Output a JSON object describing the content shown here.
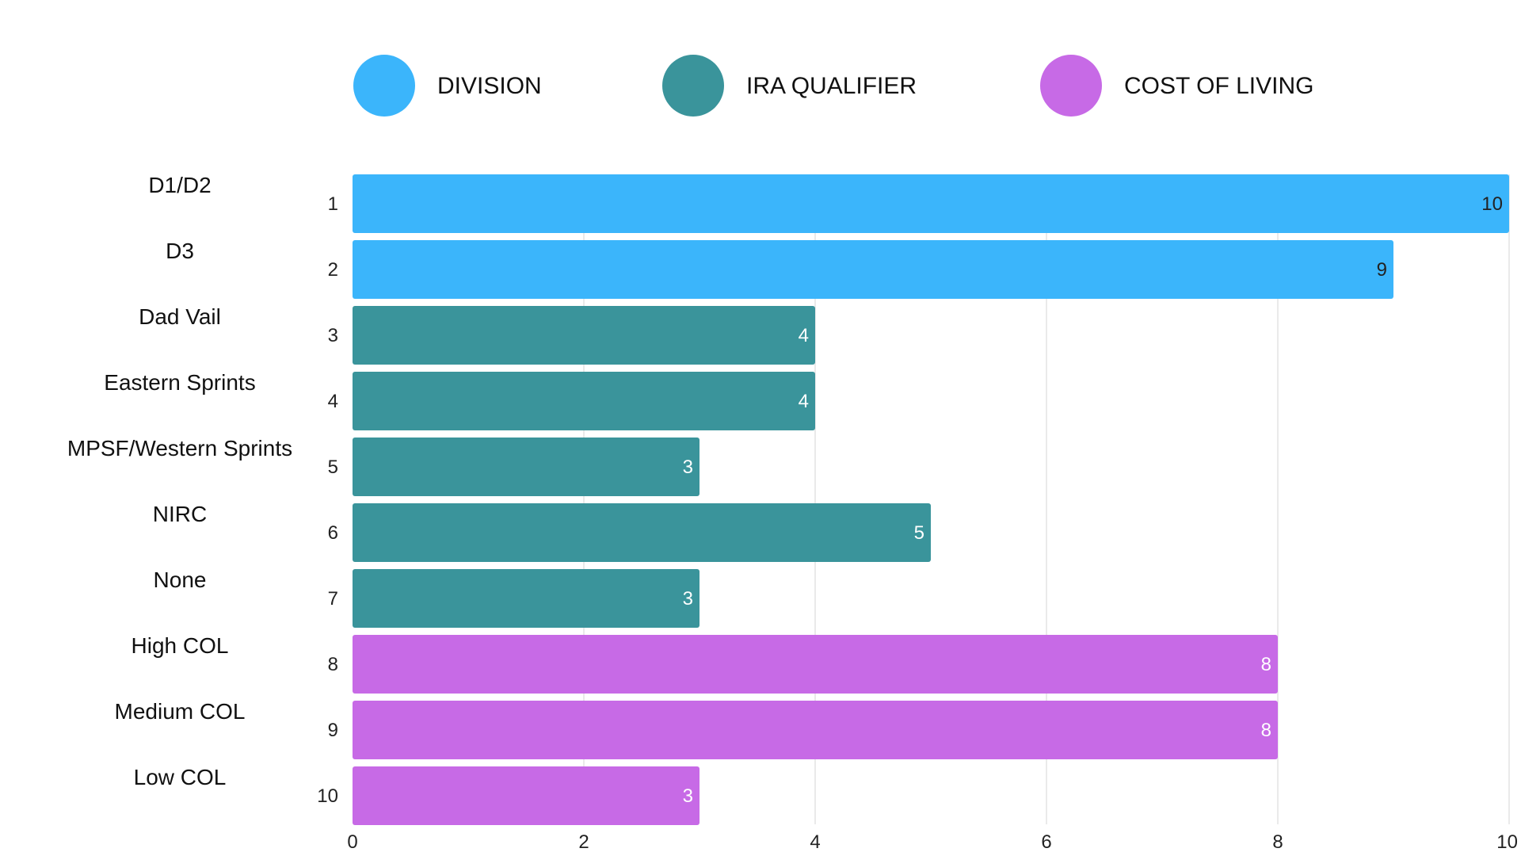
{
  "chart_data": {
    "type": "bar",
    "orientation": "horizontal",
    "xlim": [
      0,
      10
    ],
    "x_ticks": [
      0,
      2,
      4,
      6,
      8,
      10
    ],
    "grid": true,
    "legend_position": "top",
    "legend": [
      {
        "label": "DIVISION",
        "color": "#3bb5fb"
      },
      {
        "label": "IRA QUALIFIER",
        "color": "#3a949b"
      },
      {
        "label": "COST OF LIVING",
        "color": "#c76ae6"
      }
    ],
    "categories": [
      "D1/D2",
      "D3",
      "Dad Vail",
      "Eastern Sprints",
      "MPSF/Western Sprints",
      "NIRC",
      "None",
      "High COL",
      "Medium COL",
      "Low COL"
    ],
    "ranks": [
      "1",
      "2",
      "3",
      "4",
      "5",
      "6",
      "7",
      "8",
      "9",
      "10"
    ],
    "values": [
      10,
      9,
      4,
      4,
      3,
      5,
      3,
      8,
      8,
      3
    ],
    "groups": [
      0,
      0,
      1,
      1,
      1,
      1,
      1,
      2,
      2,
      2
    ],
    "label_colors": [
      "#222222",
      "#222222",
      "#ffffff",
      "#ffffff",
      "#ffffff",
      "#ffffff",
      "#ffffff",
      "#ffffff",
      "#ffffff",
      "#ffffff"
    ]
  }
}
